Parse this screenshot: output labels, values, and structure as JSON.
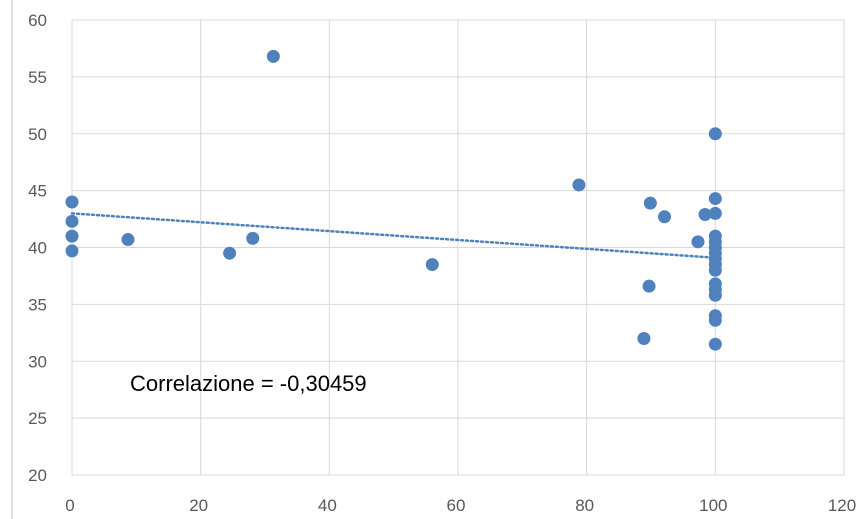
{
  "chart_data": {
    "type": "scatter",
    "title": "",
    "xlabel": "",
    "ylabel": "",
    "xlim": [
      0,
      120
    ],
    "ylim": [
      20,
      60
    ],
    "x_ticks": [
      0,
      20,
      40,
      60,
      80,
      100,
      120
    ],
    "y_ticks": [
      20,
      25,
      30,
      35,
      40,
      45,
      50,
      55,
      60
    ],
    "grid": true,
    "legend": "none",
    "colors": {
      "points": "#4f81bd",
      "trendline": "#4f81bd",
      "grid": "#d9d9d9",
      "axis": "#bfbfbf"
    },
    "annotation": "Correlazione = -0,30459",
    "trendline": {
      "style": "dotted",
      "x": [
        0,
        100
      ],
      "y": [
        43.0,
        39.1
      ]
    },
    "points": [
      {
        "x": 0,
        "y": 44.0
      },
      {
        "x": 0,
        "y": 42.3
      },
      {
        "x": 0,
        "y": 41.0
      },
      {
        "x": 0,
        "y": 39.7
      },
      {
        "x": 8.7,
        "y": 40.7
      },
      {
        "x": 24.5,
        "y": 39.5
      },
      {
        "x": 28.1,
        "y": 40.8
      },
      {
        "x": 31.3,
        "y": 56.8
      },
      {
        "x": 56.0,
        "y": 38.5
      },
      {
        "x": 78.8,
        "y": 45.5
      },
      {
        "x": 88.9,
        "y": 32.0
      },
      {
        "x": 89.7,
        "y": 36.6
      },
      {
        "x": 89.9,
        "y": 43.9
      },
      {
        "x": 92.1,
        "y": 42.7
      },
      {
        "x": 97.3,
        "y": 40.5
      },
      {
        "x": 98.4,
        "y": 42.9
      },
      {
        "x": 100,
        "y": 50.0
      },
      {
        "x": 100,
        "y": 44.3
      },
      {
        "x": 100,
        "y": 43.0
      },
      {
        "x": 100,
        "y": 41.0
      },
      {
        "x": 100,
        "y": 40.5
      },
      {
        "x": 100,
        "y": 40.0
      },
      {
        "x": 100,
        "y": 39.5
      },
      {
        "x": 100,
        "y": 39.0
      },
      {
        "x": 100,
        "y": 38.5
      },
      {
        "x": 100,
        "y": 38.0
      },
      {
        "x": 100,
        "y": 36.8
      },
      {
        "x": 100,
        "y": 36.3
      },
      {
        "x": 100,
        "y": 35.8
      },
      {
        "x": 100,
        "y": 34.0
      },
      {
        "x": 100,
        "y": 33.6
      },
      {
        "x": 100,
        "y": 31.5
      }
    ]
  }
}
